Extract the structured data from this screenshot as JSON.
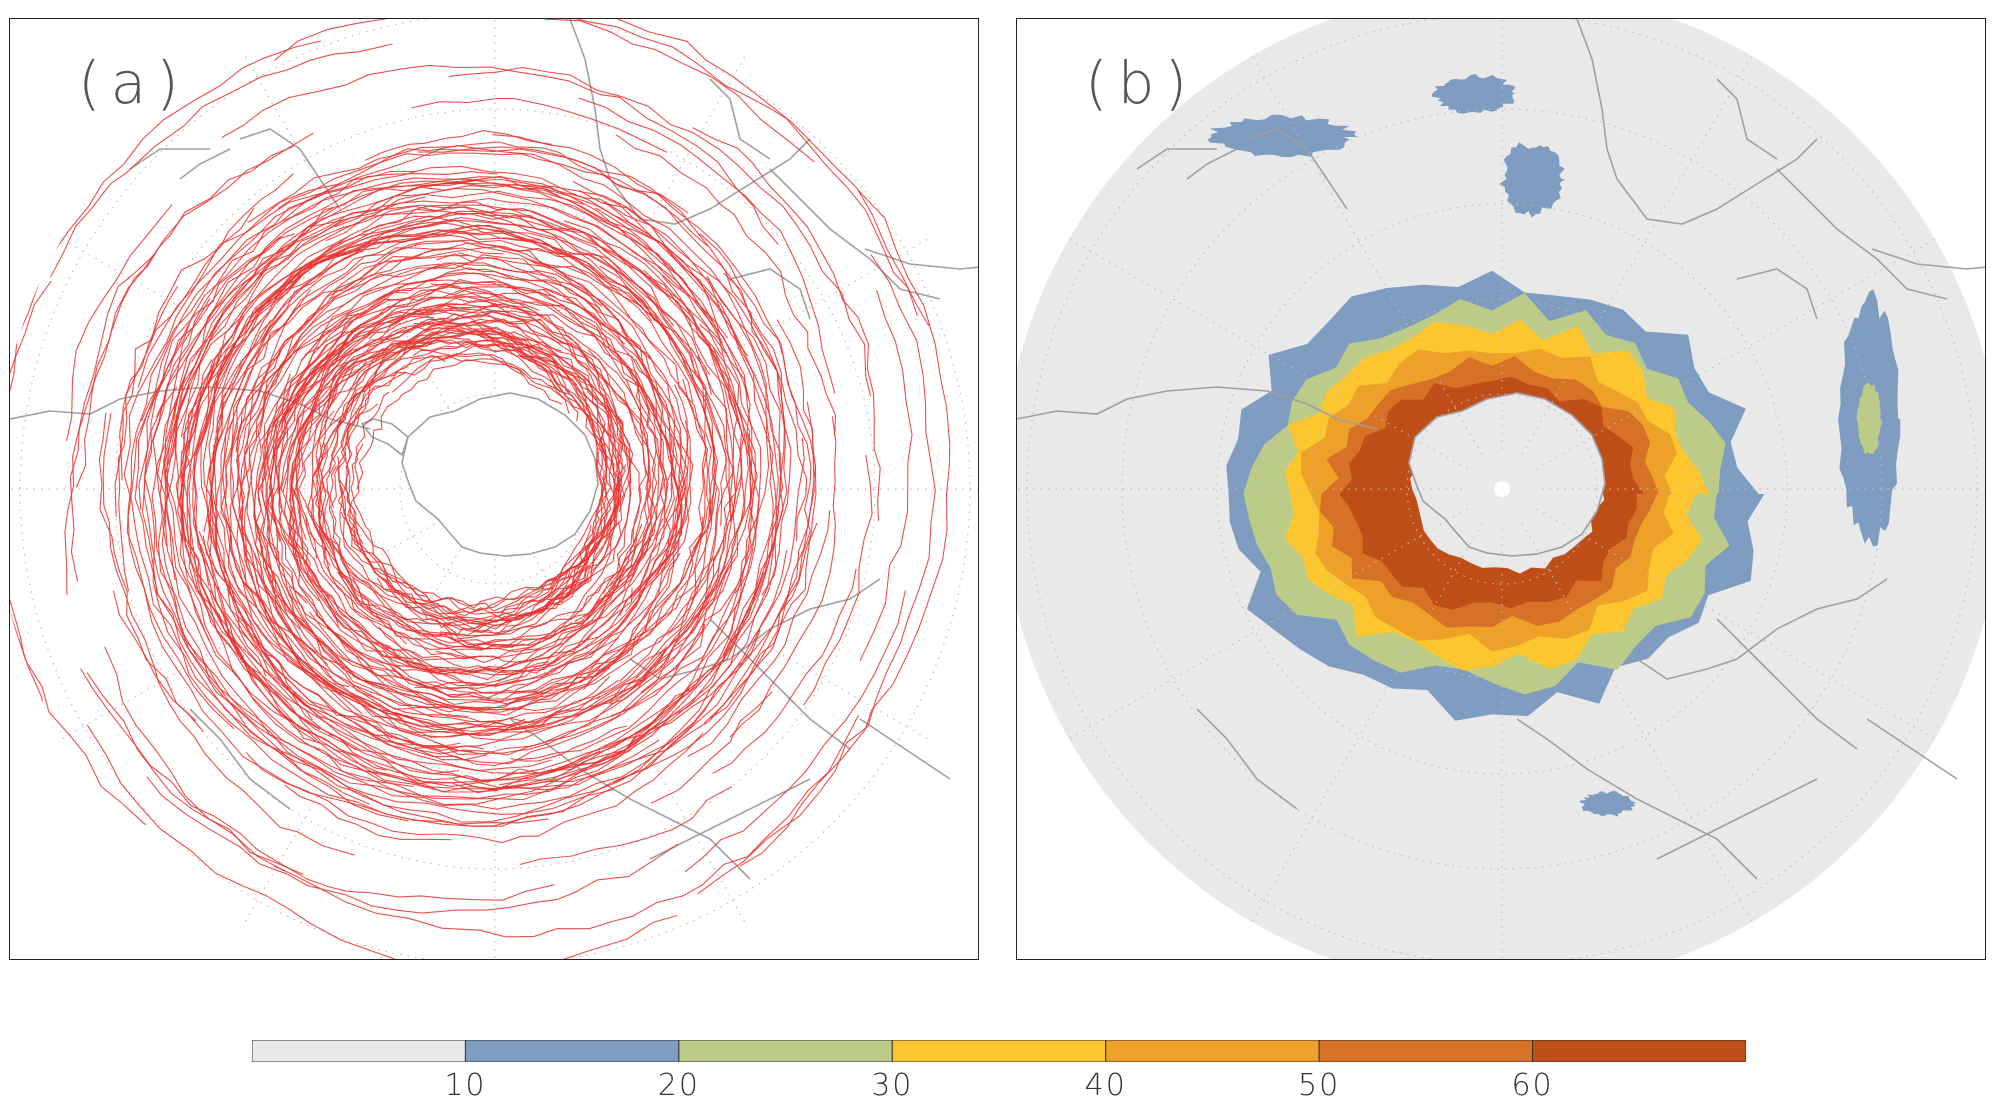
{
  "panels": [
    {
      "label": "(a)",
      "type": "cyclone-tracks",
      "track_color": "#e8302d"
    },
    {
      "label": "(b)",
      "type": "track-density",
      "background_fill": "#e9e9e9"
    }
  ],
  "map": {
    "projection": "south-polar-stereographic",
    "coastline_color": "#a0a0a0",
    "graticule_color": "#bdbdbd"
  },
  "colorbar": {
    "colors": [
      "#e9e9e9",
      "#7f9cc1",
      "#bccc88",
      "#fdc62e",
      "#eda128",
      "#d77126",
      "#c04e18"
    ],
    "ticks": [
      "10",
      "20",
      "30",
      "40",
      "50",
      "60"
    ]
  }
}
